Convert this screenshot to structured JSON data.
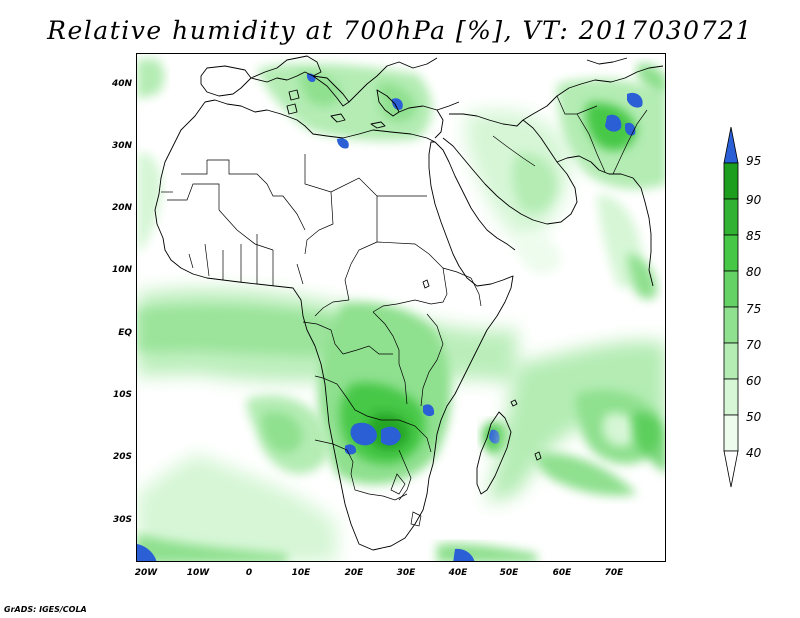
{
  "title": "Relative humidity at 700hPa [%], VT: 2017030721",
  "footer": "GrADS: IGES/COLA",
  "lat_labels": [
    "40N",
    "30N",
    "20N",
    "10N",
    "EQ",
    "10S",
    "20S",
    "30S"
  ],
  "lon_labels": [
    "20W",
    "10W",
    "0",
    "10E",
    "20E",
    "30E",
    "40E",
    "50E",
    "60E",
    "70E"
  ],
  "colorbar": {
    "levels": [
      "95",
      "90",
      "85",
      "80",
      "75",
      "70",
      "60",
      "50",
      "40"
    ],
    "colors": [
      "#2a5fd6",
      "#1e9e1e",
      "#32b232",
      "#46c846",
      "#64d264",
      "#8fe08f",
      "#b4ecb4",
      "#d6f6d6",
      "#eefcee",
      "#ffffff"
    ]
  }
}
